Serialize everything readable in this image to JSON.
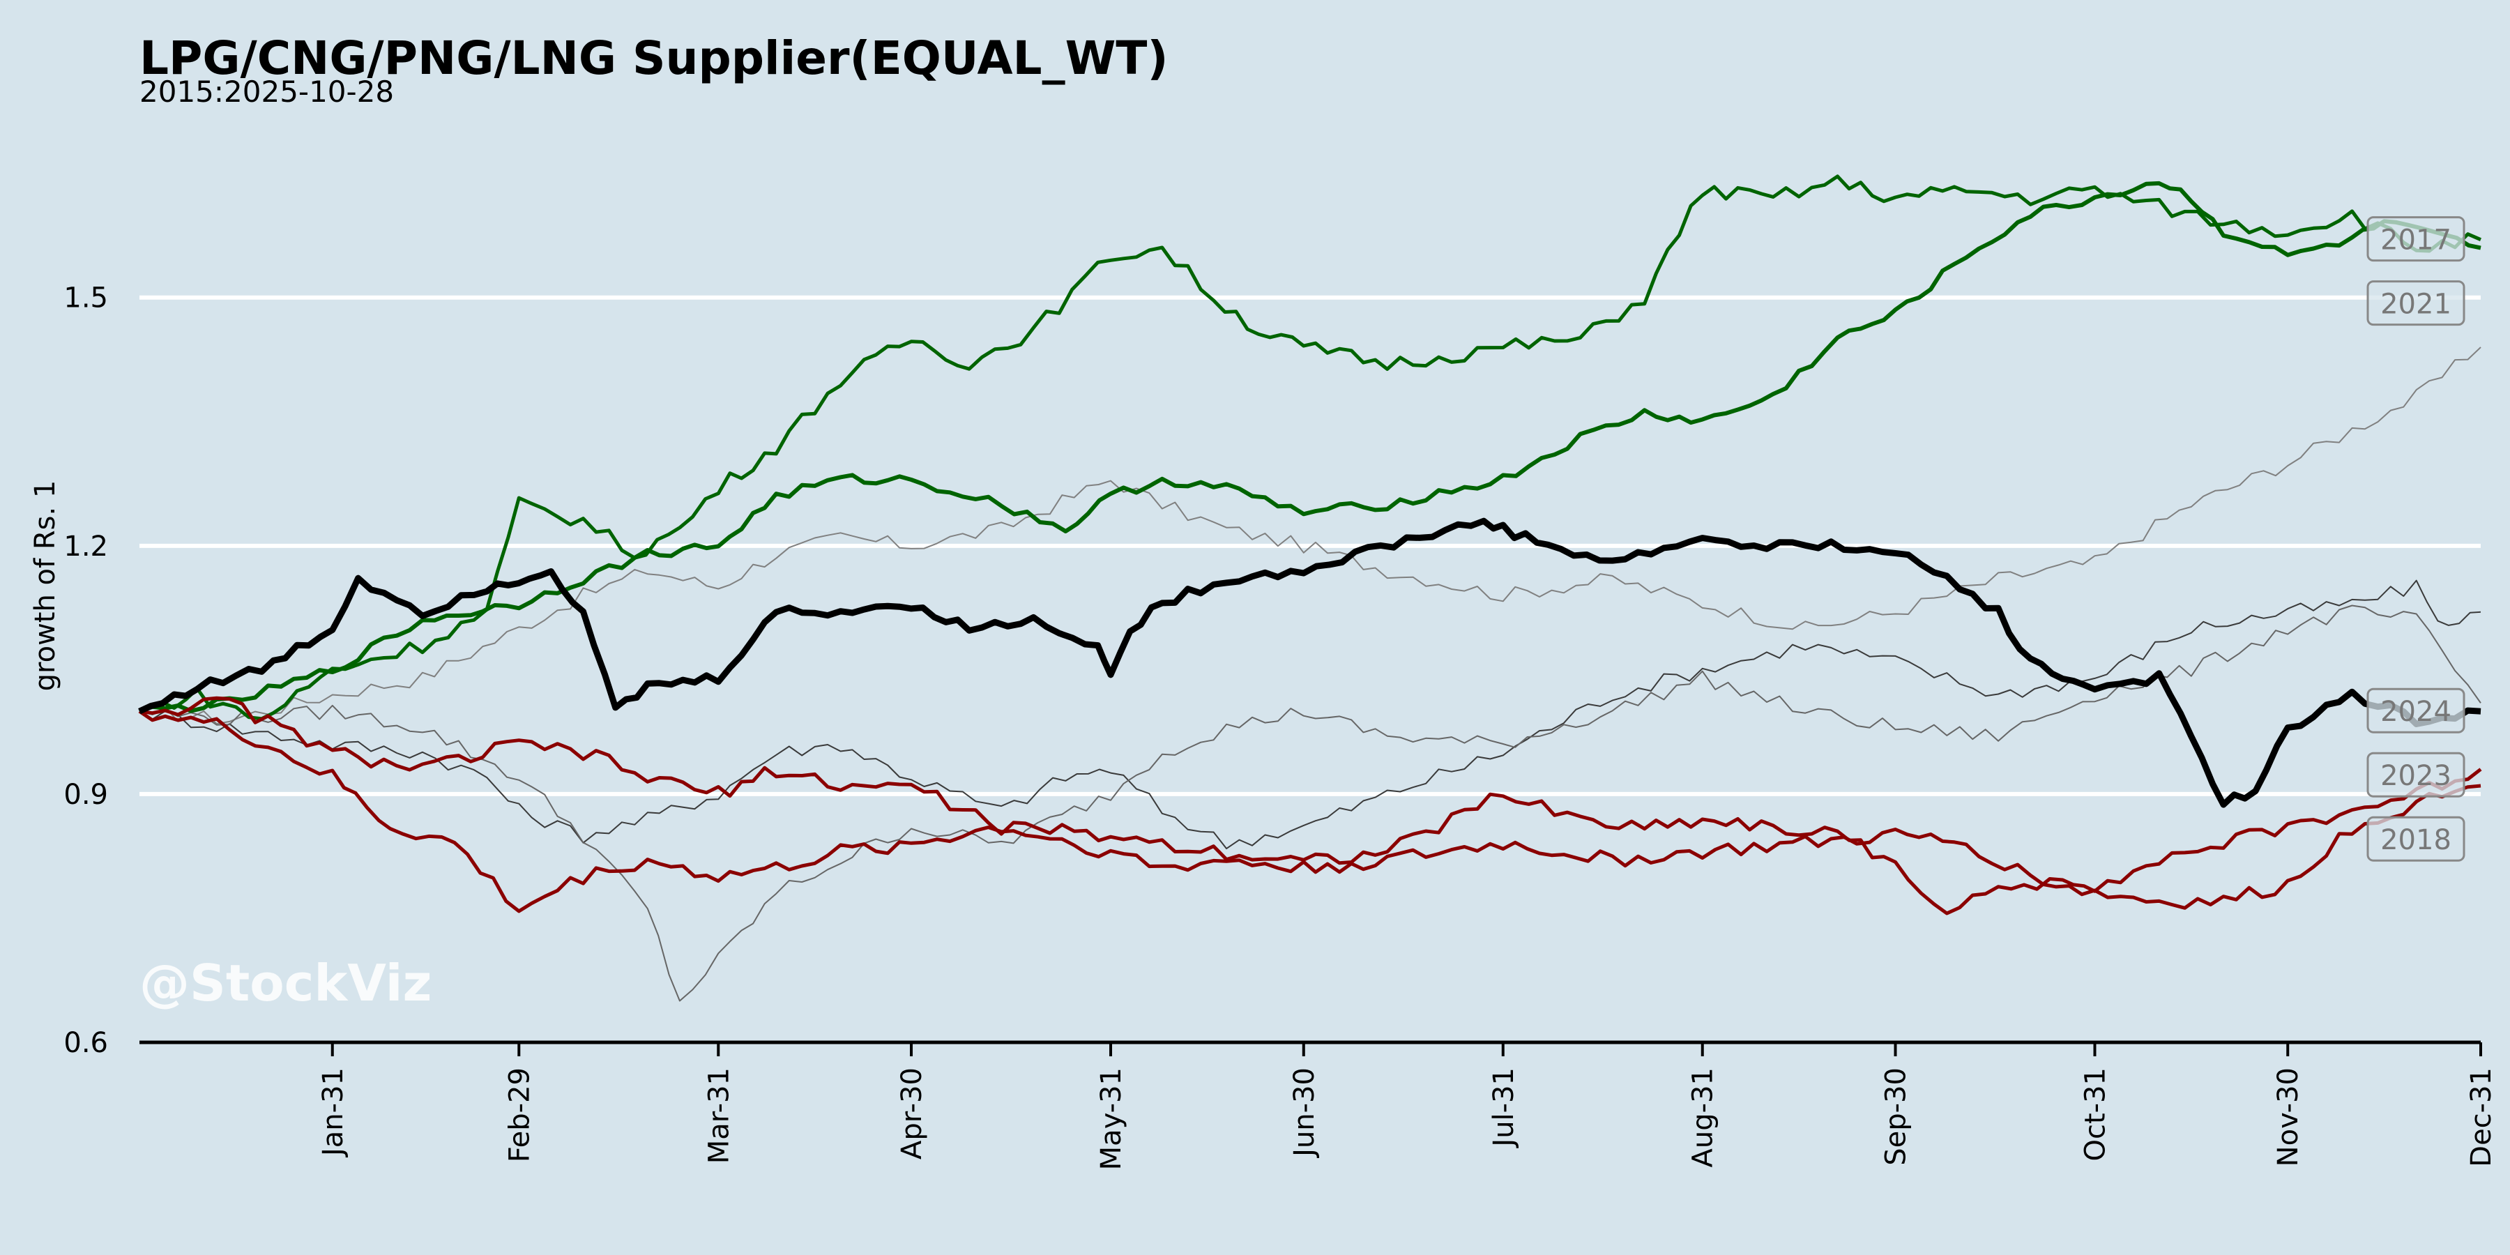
{
  "chart_data": {
    "type": "line",
    "title": "LPG/CNG/PNG/LNG Supplier(EQUAL_WT)",
    "subtitle": "2015:2025-10-28",
    "ylabel": "growth of Rs. 1",
    "xlabel": "",
    "ylim": [
      0.6,
      1.75
    ],
    "yticks": [
      0.6,
      0.9,
      1.2,
      1.5
    ],
    "xlim": [
      1,
      365
    ],
    "xticks": [
      {
        "day": 31,
        "label": "Jan-31"
      },
      {
        "day": 60,
        "label": "Feb-29"
      },
      {
        "day": 91,
        "label": "Mar-31"
      },
      {
        "day": 121,
        "label": "Apr-30"
      },
      {
        "day": 152,
        "label": "May-31"
      },
      {
        "day": 182,
        "label": "Jun-30"
      },
      {
        "day": 213,
        "label": "Jul-31"
      },
      {
        "day": 244,
        "label": "Aug-31"
      },
      {
        "day": 274,
        "label": "Sep-30"
      },
      {
        "day": 305,
        "label": "Oct-31"
      },
      {
        "day": 335,
        "label": "Nov-30"
      },
      {
        "day": 366,
        "label": "Dec-31"
      }
    ],
    "grid": "horizontal",
    "watermark": "@StockViz",
    "series": [
      {
        "name": "",
        "color": "#808080",
        "width": 2,
        "x": [
          1,
          15,
          31,
          45,
          60,
          70,
          80,
          91,
          100,
          110,
          121,
          135,
          152,
          160,
          170,
          182,
          195,
          213,
          230,
          244,
          260,
          274,
          290,
          305,
          320,
          335,
          345,
          355,
          365
        ],
        "y": [
          1.0,
          0.99,
          1.02,
          1.04,
          1.1,
          1.14,
          1.17,
          1.15,
          1.19,
          1.21,
          1.2,
          1.22,
          1.28,
          1.25,
          1.22,
          1.2,
          1.17,
          1.14,
          1.16,
          1.13,
          1.1,
          1.12,
          1.16,
          1.18,
          1.25,
          1.3,
          1.34,
          1.38,
          1.44
        ]
      },
      {
        "name": "",
        "color": "#3a3a3a",
        "width": 2,
        "x": [
          1,
          15,
          31,
          45,
          55,
          60,
          70,
          80,
          91,
          100,
          110,
          121,
          135,
          145,
          152,
          160,
          170,
          182,
          195,
          213,
          230,
          244,
          260,
          274,
          290,
          305,
          320,
          335,
          345,
          355,
          360,
          365
        ],
        "y": [
          1.0,
          0.98,
          0.96,
          0.95,
          0.92,
          0.88,
          0.85,
          0.87,
          0.9,
          0.95,
          0.96,
          0.92,
          0.88,
          0.92,
          0.93,
          0.88,
          0.84,
          0.86,
          0.9,
          0.95,
          1.02,
          1.05,
          1.08,
          1.06,
          1.02,
          1.04,
          1.1,
          1.12,
          1.13,
          1.15,
          1.1,
          1.12
        ]
      },
      {
        "name": "",
        "color": "#666666",
        "width": 2,
        "x": [
          1,
          15,
          31,
          45,
          60,
          70,
          80,
          85,
          91,
          100,
          110,
          121,
          135,
          152,
          160,
          170,
          182,
          195,
          213,
          230,
          244,
          260,
          274,
          290,
          305,
          320,
          335,
          345,
          355,
          365
        ],
        "y": [
          1.0,
          0.99,
          1.0,
          0.98,
          0.92,
          0.85,
          0.76,
          0.65,
          0.7,
          0.78,
          0.82,
          0.86,
          0.84,
          0.9,
          0.95,
          0.98,
          1.0,
          0.97,
          0.96,
          1.0,
          1.04,
          1.0,
          0.98,
          0.97,
          1.02,
          1.05,
          1.1,
          1.12,
          1.11,
          1.01
        ]
      },
      {
        "name": "2017",
        "color": "#006400",
        "width": 5,
        "x": [
          1,
          10,
          20,
          31,
          45,
          55,
          60,
          70,
          78,
          85,
          91,
          100,
          110,
          121,
          130,
          140,
          152,
          160,
          168,
          175,
          182,
          195,
          205,
          213,
          225,
          235,
          244,
          255,
          265,
          274,
          285,
          295,
          305,
          315,
          325,
          335,
          345,
          355,
          365
        ],
        "y": [
          1.0,
          1.02,
          0.99,
          1.05,
          1.08,
          1.12,
          1.25,
          1.23,
          1.19,
          1.22,
          1.27,
          1.32,
          1.4,
          1.45,
          1.42,
          1.46,
          1.55,
          1.56,
          1.5,
          1.46,
          1.44,
          1.42,
          1.43,
          1.44,
          1.45,
          1.5,
          1.63,
          1.62,
          1.64,
          1.62,
          1.63,
          1.62,
          1.63,
          1.61,
          1.59,
          1.58,
          1.6,
          1.56,
          1.57
        ]
      },
      {
        "name": "2021",
        "color": "#006400",
        "width": 6,
        "x": [
          1,
          15,
          31,
          45,
          60,
          70,
          80,
          91,
          100,
          110,
          121,
          135,
          145,
          152,
          160,
          170,
          182,
          195,
          213,
          225,
          235,
          244,
          255,
          265,
          274,
          285,
          295,
          305,
          315,
          320,
          325,
          335,
          345,
          350,
          365
        ],
        "y": [
          1.0,
          1.01,
          1.05,
          1.11,
          1.13,
          1.16,
          1.19,
          1.2,
          1.26,
          1.28,
          1.28,
          1.25,
          1.22,
          1.26,
          1.28,
          1.27,
          1.24,
          1.25,
          1.28,
          1.33,
          1.36,
          1.35,
          1.38,
          1.45,
          1.48,
          1.55,
          1.6,
          1.62,
          1.64,
          1.62,
          1.58,
          1.55,
          1.57,
          1.59,
          1.56
        ]
      },
      {
        "name": "2018",
        "color": "#8b0000",
        "width": 5,
        "x": [
          1,
          15,
          31,
          40,
          50,
          60,
          70,
          80,
          91,
          100,
          110,
          121,
          135,
          152,
          160,
          170,
          182,
          195,
          213,
          230,
          244,
          260,
          274,
          285,
          295,
          305,
          315,
          325,
          335,
          345,
          355,
          365
        ],
        "y": [
          1.0,
          0.98,
          0.92,
          0.86,
          0.84,
          0.76,
          0.8,
          0.82,
          0.8,
          0.81,
          0.83,
          0.84,
          0.86,
          0.83,
          0.81,
          0.82,
          0.81,
          0.82,
          0.84,
          0.82,
          0.83,
          0.84,
          0.85,
          0.84,
          0.8,
          0.78,
          0.77,
          0.77,
          0.79,
          0.86,
          0.89,
          0.91
        ]
      },
      {
        "name": "2023",
        "color": "#8b0000",
        "width": 5,
        "x": [
          1,
          15,
          31,
          45,
          60,
          70,
          80,
          91,
          100,
          110,
          121,
          135,
          152,
          160,
          170,
          182,
          195,
          213,
          225,
          235,
          244,
          255,
          265,
          274,
          280,
          290,
          300,
          305,
          315,
          325,
          335,
          345,
          355,
          365
        ],
        "y": [
          1.0,
          1.01,
          0.95,
          0.93,
          0.96,
          0.95,
          0.92,
          0.9,
          0.93,
          0.91,
          0.91,
          0.86,
          0.85,
          0.84,
          0.83,
          0.82,
          0.83,
          0.9,
          0.87,
          0.86,
          0.87,
          0.86,
          0.85,
          0.82,
          0.76,
          0.78,
          0.8,
          0.79,
          0.82,
          0.84,
          0.86,
          0.88,
          0.9,
          0.93
        ]
      },
      {
        "name": "2024",
        "color": "#000000",
        "width": 9,
        "x": [
          1,
          10,
          20,
          31,
          35,
          45,
          55,
          60,
          65,
          70,
          75,
          80,
          91,
          100,
          110,
          121,
          130,
          140,
          150,
          152,
          155,
          160,
          170,
          182,
          190,
          200,
          210,
          213,
          220,
          230,
          240,
          244,
          250,
          260,
          270,
          274,
          280,
          290,
          295,
          300,
          305,
          315,
          320,
          325,
          330,
          335,
          345,
          355,
          365
        ],
        "y": [
          1.0,
          1.03,
          1.05,
          1.1,
          1.16,
          1.12,
          1.15,
          1.16,
          1.17,
          1.12,
          1.0,
          1.03,
          1.04,
          1.12,
          1.12,
          1.13,
          1.1,
          1.11,
          1.08,
          1.04,
          1.1,
          1.13,
          1.16,
          1.17,
          1.19,
          1.21,
          1.23,
          1.22,
          1.2,
          1.18,
          1.2,
          1.21,
          1.2,
          1.2,
          1.2,
          1.19,
          1.17,
          1.12,
          1.06,
          1.04,
          1.03,
          1.04,
          0.97,
          0.89,
          0.9,
          0.98,
          1.02,
          0.99,
          1.0
        ]
      }
    ]
  }
}
